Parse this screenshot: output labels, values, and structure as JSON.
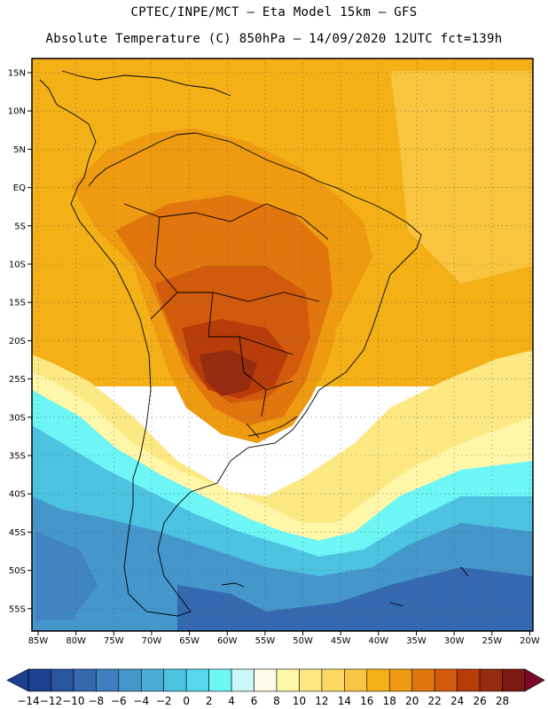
{
  "header": {
    "line1": "CPTEC/INPE/MCT –  Eta Model 15km – GFS",
    "line2": "Absolute Temperature (C) 850hPa – 14/09/2020 12UTC fct=139h"
  },
  "map": {
    "lat_labels": [
      "15N",
      "10N",
      "5N",
      "EQ",
      "5S",
      "10S",
      "15S",
      "20S",
      "25S",
      "30S",
      "35S",
      "40S",
      "45S",
      "50S",
      "55S"
    ],
    "lon_labels": [
      "85W",
      "80W",
      "75W",
      "70W",
      "65W",
      "60W",
      "55W",
      "50W",
      "45W",
      "40W",
      "35W",
      "30W",
      "25W",
      "20W"
    ]
  },
  "colorbar": {
    "labels": [
      "-14",
      "-12",
      "-10",
      "-8",
      "-6",
      "-4",
      "-2",
      "0",
      "2",
      "4",
      "6",
      "8",
      "10",
      "12",
      "14",
      "16",
      "18",
      "20",
      "22",
      "24",
      "26",
      "28"
    ],
    "colors": [
      "#1c3f8f",
      "#2855a0",
      "#3469b0",
      "#3f7fbf",
      "#4596cb",
      "#4badd6",
      "#4dc3e2",
      "#57d7ee",
      "#6ef6f6",
      "#c9f7fa",
      "#fffbe8",
      "#fef6a8",
      "#fde983",
      "#fbd963",
      "#f9c644",
      "#f4b017",
      "#ee9b12",
      "#e2760e",
      "#d25a0c",
      "#b83c0a",
      "#952b0f",
      "#7a1a0f"
    ]
  }
}
